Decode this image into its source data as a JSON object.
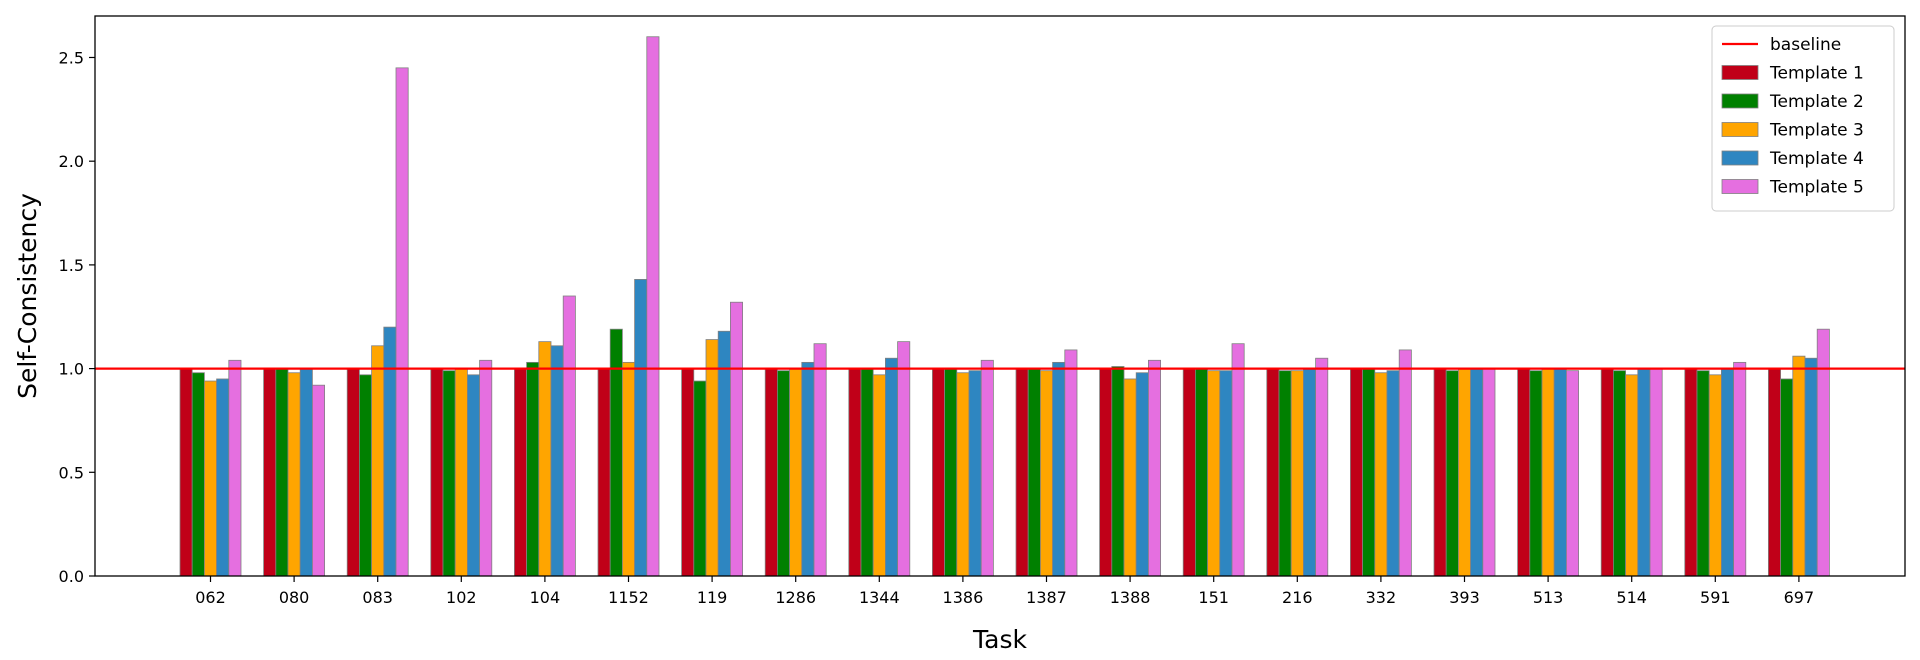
{
  "chart_data": {
    "type": "bar",
    "title": "",
    "xlabel": "Task",
    "ylabel": "Self-Consistency",
    "ylim": [
      0,
      2.7
    ],
    "yticks": [
      0.0,
      0.5,
      1.0,
      1.5,
      2.0,
      2.5
    ],
    "ytick_labels": [
      "0.0",
      "0.5",
      "1.0",
      "1.5",
      "2.0",
      "2.5"
    ],
    "grid": false,
    "legend_position": "top-right",
    "baseline": {
      "name": "baseline",
      "value": 1.0,
      "color": "#ff0000"
    },
    "categories": [
      "062",
      "080",
      "083",
      "102",
      "104",
      "1152",
      "119",
      "1286",
      "1344",
      "1386",
      "1387",
      "1388",
      "151",
      "216",
      "332",
      "393",
      "513",
      "514",
      "591",
      "697"
    ],
    "series": [
      {
        "name": "Template 1",
        "color": "#c00018",
        "values": [
          1.0,
          1.0,
          1.0,
          1.0,
          1.0,
          1.0,
          1.0,
          1.0,
          1.0,
          1.0,
          1.0,
          1.0,
          1.0,
          1.0,
          1.0,
          1.0,
          1.0,
          1.0,
          1.0,
          1.0
        ]
      },
      {
        "name": "Template 2",
        "color": "#008000",
        "values": [
          0.98,
          1.0,
          0.97,
          0.99,
          1.03,
          1.19,
          0.94,
          0.99,
          1.0,
          1.0,
          1.0,
          1.01,
          1.0,
          0.99,
          1.0,
          0.99,
          0.99,
          0.99,
          0.99,
          0.95
        ]
      },
      {
        "name": "Template 3",
        "color": "#ffa500",
        "values": [
          0.94,
          0.98,
          1.11,
          1.0,
          1.13,
          1.03,
          1.14,
          1.0,
          0.97,
          0.98,
          0.99,
          0.95,
          0.99,
          0.99,
          0.98,
          1.0,
          1.0,
          0.97,
          0.97,
          1.06
        ]
      },
      {
        "name": "Template 4",
        "color": "#2e86c1",
        "values": [
          0.95,
          1.0,
          1.2,
          0.97,
          1.11,
          1.43,
          1.18,
          1.03,
          1.05,
          0.99,
          1.03,
          0.98,
          0.99,
          1.0,
          0.99,
          1.0,
          1.0,
          1.0,
          1.0,
          1.05
        ]
      },
      {
        "name": "Template 5",
        "color": "#e56fe0",
        "values": [
          1.04,
          0.92,
          2.45,
          1.04,
          1.35,
          2.6,
          1.32,
          1.12,
          1.13,
          1.04,
          1.09,
          1.04,
          1.12,
          1.05,
          1.09,
          1.0,
          0.99,
          1.0,
          1.03,
          1.19
        ]
      }
    ]
  }
}
